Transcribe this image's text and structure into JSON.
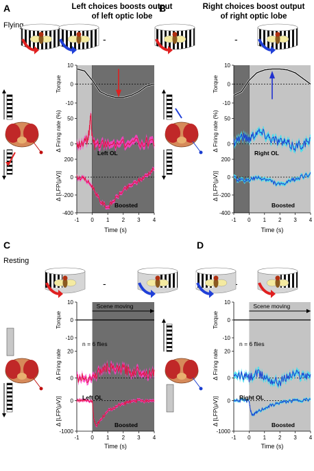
{
  "figure": {
    "panels": [
      {
        "letter": "A",
        "title_line1": "Left choices boosts output",
        "title_line2": "of left optic lobe",
        "side_label": "Flying"
      },
      {
        "letter": "B",
        "title_line1": "Right choices boost output",
        "title_line2": "of right optic lobe",
        "side_label": ""
      },
      {
        "letter": "C",
        "title_line1": "",
        "title_line2": "",
        "side_label": "Resting"
      },
      {
        "letter": "D",
        "title_line1": "",
        "title_line2": "",
        "side_label": ""
      }
    ],
    "minus_sign": "-",
    "colors": {
      "flying_shade": "#6e6e6e",
      "gray_light": "#c4c4c4",
      "left_mean": "#e0143c",
      "left_sem": "#ff3ec8",
      "right_mean": "#1a3ed0",
      "right_sem": "#40e0f0",
      "torque": "#000000",
      "boost_arrow_left": "#e02020",
      "boost_arrow_right": "#2030d0"
    }
  },
  "chart_data": [
    {
      "type": "line",
      "panel": "A",
      "xlabel": "Time (s)",
      "x_ticks": [
        "-1",
        "0",
        "1",
        "2",
        "3",
        "4"
      ],
      "xlim": [
        -1,
        4
      ],
      "subplots": [
        {
          "ylabel": "Torque",
          "ylim": [
            -10,
            10
          ],
          "y_ticks": [
            "10",
            "0",
            "-10"
          ],
          "series": [
            {
              "x": [
                -1,
                -0.5,
                0,
                0.5,
                1,
                1.5,
                2,
                2.5,
                3,
                3.5,
                4
              ],
              "y": [
                8,
                7,
                2,
                -4,
                -6,
                -7,
                -7,
                -6,
                -4,
                -1,
                0
              ]
            }
          ],
          "annotation": "",
          "arrow_at": 1.7
        },
        {
          "ylabel": "Δ Firing rate (%)",
          "ylim": [
            -30,
            80
          ],
          "y_ticks": [
            "50",
            "0"
          ],
          "series": [
            {
              "x": [
                -1,
                -0.6,
                -0.3,
                -0.2,
                -0.1,
                0,
                0.2,
                1,
                2,
                3,
                4
              ],
              "y": [
                0,
                2,
                10,
                25,
                55,
                10,
                -5,
                0,
                2,
                3,
                5
              ]
            }
          ],
          "annotation": "Left OL"
        },
        {
          "ylabel": "Δ [LFP(μV)]",
          "ylim": [
            -400,
            200
          ],
          "y_ticks": [
            "200",
            "0",
            "-200",
            "-400"
          ],
          "series": [
            {
              "x": [
                -1,
                -0.5,
                0,
                0.5,
                1,
                1.5,
                2,
                2.5,
                3,
                3.5,
                4
              ],
              "y": [
                0,
                -20,
                -100,
                -270,
                -340,
                -240,
                -150,
                -90,
                -40,
                20,
                100
              ]
            }
          ],
          "annotation": "Boosted"
        }
      ]
    },
    {
      "type": "line",
      "panel": "B",
      "xlabel": "Time (s)",
      "x_ticks": [
        "-1",
        "0",
        "1",
        "2",
        "3",
        "4"
      ],
      "xlim": [
        -1,
        4
      ],
      "subplots": [
        {
          "ylabel": "Torque",
          "ylim": [
            -10,
            10
          ],
          "y_ticks": [
            "10",
            "0",
            "-10"
          ],
          "series": [
            {
              "x": [
                -1,
                -0.5,
                0,
                0.5,
                1,
                1.5,
                2,
                2.5,
                3,
                3.5,
                4
              ],
              "y": [
                -6,
                -4,
                2,
                6,
                7.5,
                8,
                8,
                7.5,
                6,
                3,
                0
              ]
            }
          ],
          "annotation": "",
          "arrow_at": 1.5
        },
        {
          "ylabel": "Δ Firing rate (%)",
          "ylim": [
            -30,
            80
          ],
          "y_ticks": [
            "50",
            "0"
          ],
          "series": [
            {
              "x": [
                -1,
                -0.5,
                0,
                0.5,
                1,
                1.5,
                2,
                2.5,
                3,
                3.5,
                4
              ],
              "y": [
                5,
                15,
                10,
                25,
                20,
                10,
                5,
                0,
                -5,
                0,
                5
              ]
            }
          ],
          "annotation": "Right OL"
        },
        {
          "ylabel": "Δ [LFP(μV)]",
          "ylim": [
            -400,
            200
          ],
          "y_ticks": [
            "200",
            "0",
            "-200",
            "-400"
          ],
          "series": [
            {
              "x": [
                -1,
                -0.5,
                0,
                0.5,
                1,
                1.5,
                2,
                2.5,
                3,
                3.5,
                4
              ],
              "y": [
                -10,
                -40,
                -30,
                -10,
                -20,
                -50,
                -90,
                -60,
                -20,
                10,
                30
              ]
            }
          ],
          "annotation": "Boosted"
        }
      ]
    },
    {
      "type": "line",
      "panel": "C",
      "xlabel": "Time (s)",
      "x_ticks": [
        "-1",
        "0",
        "1",
        "2",
        "3",
        "4"
      ],
      "xlim": [
        -1,
        4
      ],
      "subplots": [
        {
          "ylabel": "Torque",
          "ylim": [
            -10,
            10
          ],
          "y_ticks": [
            "10",
            "0",
            "-10"
          ],
          "series": [
            {
              "x": [
                -1,
                0,
                4
              ],
              "y": [
                0,
                0,
                0
              ]
            }
          ],
          "annotation": "Scene moving"
        },
        {
          "ylabel": "Δ Firing rate",
          "ylim": [
            -10,
            30
          ],
          "y_ticks": [
            "20",
            "0"
          ],
          "series": [
            {
              "x": [
                -1,
                -0.5,
                0,
                0.5,
                1,
                1.5,
                2,
                2.5,
                3,
                3.5,
                4
              ],
              "y": [
                0,
                0,
                0,
                5,
                8,
                6,
                7,
                4,
                6,
                3,
                5
              ]
            }
          ],
          "annotation": "n = 6 flies"
        },
        {
          "ylabel": "Δ [LFP(μV)]",
          "ylim": [
            -1000,
            300
          ],
          "y_ticks": [
            "0",
            "-1000"
          ],
          "series": [
            {
              "x": [
                -1,
                -0.5,
                0,
                0.1,
                0.25,
                0.5,
                1,
                1.5,
                2,
                2.5,
                3,
                3.5,
                4
              ],
              "y": [
                0,
                0,
                -20,
                -600,
                -850,
                -650,
                -350,
                -200,
                -100,
                -40,
                0,
                0,
                0
              ]
            }
          ],
          "annotation": "Left OL",
          "annotation2": "Boosted"
        }
      ]
    },
    {
      "type": "line",
      "panel": "D",
      "xlabel": "Time (s)",
      "x_ticks": [
        "-1",
        "0",
        "1",
        "2",
        "3",
        "4"
      ],
      "xlim": [
        -1,
        4
      ],
      "subplots": [
        {
          "ylabel": "Torque",
          "ylim": [
            -10,
            10
          ],
          "y_ticks": [
            "10",
            "0",
            "-10"
          ],
          "series": [
            {
              "x": [
                -1,
                0,
                4
              ],
              "y": [
                0,
                0,
                0
              ]
            }
          ],
          "annotation": "Scene moving"
        },
        {
          "ylabel": "Δ Firing rate",
          "ylim": [
            -10,
            30
          ],
          "y_ticks": [
            "20",
            "0"
          ],
          "series": [
            {
              "x": [
                -1,
                -0.5,
                0,
                0.5,
                1,
                1.5,
                2,
                2.5,
                3,
                3.5,
                4
              ],
              "y": [
                0,
                2,
                0,
                3,
                1,
                -2,
                -3,
                1,
                3,
                2,
                3
              ]
            }
          ],
          "annotation": "n = 6 flies"
        },
        {
          "ylabel": "Δ [LFP(μV)]",
          "ylim": [
            -1000,
            300
          ],
          "y_ticks": [
            "0",
            "-1000"
          ],
          "series": [
            {
              "x": [
                -1,
                -0.5,
                0,
                0.1,
                0.25,
                0.5,
                1,
                1.5,
                2,
                2.5,
                3,
                3.5,
                4
              ],
              "y": [
                0,
                0,
                -10,
                -350,
                -500,
                -380,
                -250,
                -150,
                -70,
                -30,
                0,
                20,
                30
              ]
            }
          ],
          "annotation": "Right OL",
          "annotation2": "Boosted"
        }
      ]
    }
  ]
}
